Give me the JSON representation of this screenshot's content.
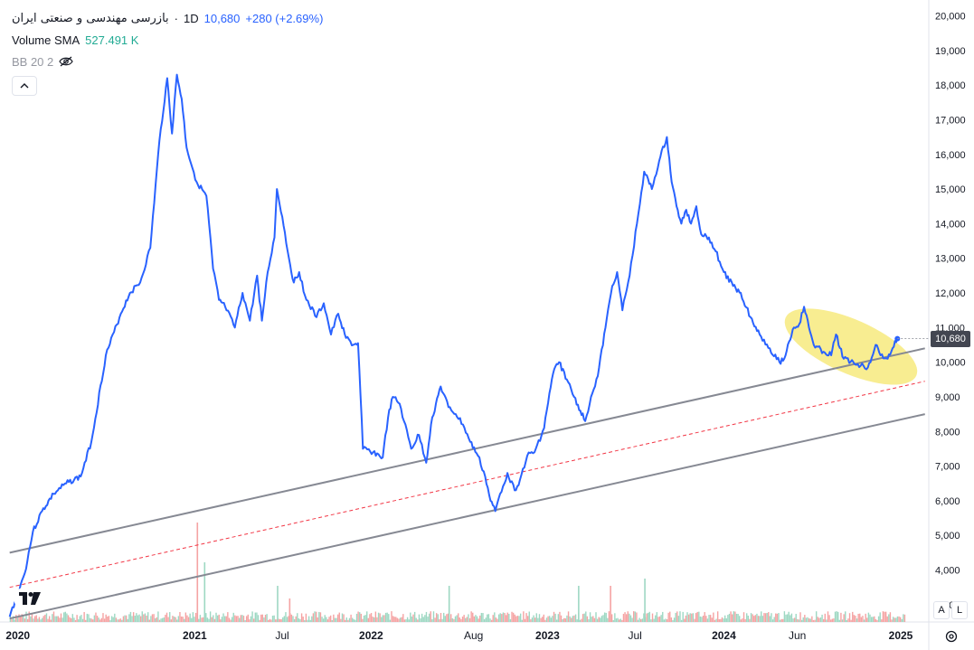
{
  "header": {
    "symbol": "بازرسی مهندسی و صنعتی ایران",
    "separator": "·",
    "interval": "1D",
    "last_price": "10,680",
    "change": "+280 (+2.69%)",
    "volume_label": "Volume SMA",
    "volume_value": "527.491 K",
    "bb_label": "BB 20 2",
    "collapse_icon": "chevron-up-icon",
    "visibility_icon": "eye-off-icon"
  },
  "price_badge": "10,680",
  "scale_buttons": {
    "auto": "A",
    "log": "L"
  },
  "colors": {
    "price_line": "#2962ff",
    "channel": "#868993",
    "midline": "#f23645",
    "highlight": "#f5e663",
    "vol_up": "#9ed8c3",
    "vol_down": "#f5a3a3"
  },
  "chart_data": {
    "type": "line",
    "title": "",
    "xlabel": "",
    "ylabel": "",
    "ylim": [
      2500,
      20300
    ],
    "xlim": [
      "2019-11-25",
      "2025-02-28"
    ],
    "y_ticks": [
      "3,000",
      "4,000",
      "5,000",
      "6,000",
      "7,000",
      "8,000",
      "9,000",
      "10,000",
      "11,000",
      "12,000",
      "13,000",
      "14,000",
      "15,000",
      "16,000",
      "17,000",
      "18,000",
      "19,000",
      "20,000"
    ],
    "x_ticks": [
      {
        "label": "2020",
        "date": "2020-01-01"
      },
      {
        "label": "2021",
        "date": "2021-01-01"
      },
      {
        "label": "Jul",
        "date": "2021-07-01"
      },
      {
        "label": "2022",
        "date": "2022-01-01"
      },
      {
        "label": "Aug",
        "date": "2022-08-01"
      },
      {
        "label": "2023",
        "date": "2023-01-01"
      },
      {
        "label": "Jul",
        "date": "2023-07-01"
      },
      {
        "label": "2024",
        "date": "2024-01-01"
      },
      {
        "label": "Jun",
        "date": "2024-06-01"
      },
      {
        "label": "2025",
        "date": "2025-01-01"
      }
    ],
    "series": [
      {
        "points": [
          [
            "2019-12-15",
            2650
          ],
          [
            "2020-01-15",
            3900
          ],
          [
            "2020-02-01",
            5100
          ],
          [
            "2020-02-20",
            5700
          ],
          [
            "2020-03-15",
            6200
          ],
          [
            "2020-04-10",
            6500
          ],
          [
            "2020-05-10",
            6700
          ],
          [
            "2020-06-01",
            7700
          ],
          [
            "2020-07-01",
            10200
          ],
          [
            "2020-08-01",
            11400
          ],
          [
            "2020-08-20",
            12000
          ],
          [
            "2020-09-10",
            12300
          ],
          [
            "2020-10-01",
            13300
          ],
          [
            "2020-10-20",
            16400
          ],
          [
            "2020-11-05",
            18200
          ],
          [
            "2020-11-15",
            16600
          ],
          [
            "2020-11-25",
            18300
          ],
          [
            "2020-12-05",
            17600
          ],
          [
            "2020-12-15",
            16200
          ],
          [
            "2021-01-05",
            15200
          ],
          [
            "2021-01-25",
            14800
          ],
          [
            "2021-02-08",
            12700
          ],
          [
            "2021-02-20",
            11800
          ],
          [
            "2021-03-05",
            11600
          ],
          [
            "2021-03-25",
            11000
          ],
          [
            "2021-04-10",
            12000
          ],
          [
            "2021-04-25",
            11200
          ],
          [
            "2021-05-10",
            12500
          ],
          [
            "2021-05-20",
            11200
          ],
          [
            "2021-06-01",
            12600
          ],
          [
            "2021-06-15",
            13600
          ],
          [
            "2021-06-20",
            15000
          ],
          [
            "2021-07-01",
            14200
          ],
          [
            "2021-07-15",
            13000
          ],
          [
            "2021-07-25",
            12300
          ],
          [
            "2021-08-05",
            12600
          ],
          [
            "2021-08-20",
            11800
          ],
          [
            "2021-09-10",
            11300
          ],
          [
            "2021-09-25",
            11700
          ],
          [
            "2021-10-10",
            10800
          ],
          [
            "2021-10-25",
            11400
          ],
          [
            "2021-11-10",
            10700
          ],
          [
            "2021-11-25",
            10500
          ],
          [
            "2021-12-05",
            10550
          ],
          [
            "2021-12-15",
            7500
          ],
          [
            "2022-01-05",
            7400
          ],
          [
            "2022-01-25",
            7250
          ],
          [
            "2022-02-05",
            8400
          ],
          [
            "2022-02-15",
            9000
          ],
          [
            "2022-03-01",
            8800
          ],
          [
            "2022-03-10",
            8300
          ],
          [
            "2022-03-25",
            7500
          ],
          [
            "2022-04-10",
            7900
          ],
          [
            "2022-04-25",
            7100
          ],
          [
            "2022-05-05",
            8200
          ],
          [
            "2022-05-15",
            8800
          ],
          [
            "2022-05-25",
            9300
          ],
          [
            "2022-06-10",
            8700
          ],
          [
            "2022-06-25",
            8500
          ],
          [
            "2022-07-10",
            8200
          ],
          [
            "2022-07-25",
            7700
          ],
          [
            "2022-08-10",
            7300
          ],
          [
            "2022-08-25",
            6700
          ],
          [
            "2022-09-05",
            6000
          ],
          [
            "2022-09-15",
            5700
          ],
          [
            "2022-09-25",
            6200
          ],
          [
            "2022-10-10",
            6800
          ],
          [
            "2022-10-25",
            6300
          ],
          [
            "2022-11-05",
            6600
          ],
          [
            "2022-11-20",
            7300
          ],
          [
            "2022-12-05",
            7400
          ],
          [
            "2022-12-25",
            8100
          ],
          [
            "2023-01-05",
            9100
          ],
          [
            "2023-01-15",
            9800
          ],
          [
            "2023-01-25",
            10000
          ],
          [
            "2023-02-10",
            9500
          ],
          [
            "2023-02-25",
            9000
          ],
          [
            "2023-03-10",
            8600
          ],
          [
            "2023-03-20",
            8300
          ],
          [
            "2023-04-01",
            9000
          ],
          [
            "2023-04-15",
            9600
          ],
          [
            "2023-05-01",
            11000
          ],
          [
            "2023-05-15",
            12200
          ],
          [
            "2023-05-25",
            12600
          ],
          [
            "2023-06-05",
            11500
          ],
          [
            "2023-06-20",
            12500
          ],
          [
            "2023-07-05",
            14000
          ],
          [
            "2023-07-20",
            15500
          ],
          [
            "2023-08-05",
            15000
          ],
          [
            "2023-08-20",
            15800
          ],
          [
            "2023-09-05",
            16500
          ],
          [
            "2023-09-15",
            15200
          ],
          [
            "2023-09-25",
            14500
          ],
          [
            "2023-10-05",
            14000
          ],
          [
            "2023-10-15",
            14400
          ],
          [
            "2023-10-25",
            14000
          ],
          [
            "2023-11-05",
            14500
          ],
          [
            "2023-11-15",
            13700
          ],
          [
            "2023-12-01",
            13600
          ],
          [
            "2023-12-15",
            13200
          ],
          [
            "2024-01-01",
            12600
          ],
          [
            "2024-01-20",
            12200
          ],
          [
            "2024-02-05",
            12000
          ],
          [
            "2024-02-25",
            11300
          ],
          [
            "2024-03-15",
            10800
          ],
          [
            "2024-04-05",
            10400
          ],
          [
            "2024-04-25",
            10000
          ],
          [
            "2024-05-05",
            10100
          ],
          [
            "2024-05-15",
            10600
          ],
          [
            "2024-05-25",
            11000
          ],
          [
            "2024-06-05",
            11100
          ],
          [
            "2024-06-15",
            11600
          ],
          [
            "2024-06-25",
            11000
          ],
          [
            "2024-07-05",
            10500
          ],
          [
            "2024-07-25",
            10300
          ],
          [
            "2024-08-10",
            10200
          ],
          [
            "2024-08-20",
            10800
          ],
          [
            "2024-09-05",
            10100
          ],
          [
            "2024-09-25",
            10000
          ],
          [
            "2024-10-10",
            9900
          ],
          [
            "2024-10-25",
            9850
          ],
          [
            "2024-11-10",
            10500
          ],
          [
            "2024-11-20",
            10200
          ],
          [
            "2024-12-05",
            10100
          ],
          [
            "2024-12-15",
            10400
          ],
          [
            "2024-12-25",
            10680
          ]
        ]
      }
    ],
    "channel": {
      "upper": [
        [
          "2019-12-15",
          4500
        ],
        [
          "2025-02-20",
          10400
        ]
      ],
      "mid": [
        [
          "2019-12-15",
          3500
        ],
        [
          "2025-02-20",
          9450
        ]
      ],
      "lower": [
        [
          "2019-12-15",
          2600
        ],
        [
          "2025-02-20",
          8500
        ]
      ]
    },
    "highlight_region": {
      "start": "2024-04-25",
      "end": "2025-02-15",
      "low": 9200,
      "high": 11700
    },
    "last_point": [
      "2024-12-25",
      10680
    ],
    "volume": {
      "note": "volume bars at bottom, no values printed",
      "spikes": [
        {
          "date": "2021-01-05",
          "relative": 0.55,
          "direction": "down"
        },
        {
          "date": "2021-01-20",
          "relative": 0.33,
          "direction": "up"
        },
        {
          "date": "2021-06-20",
          "relative": 0.2,
          "direction": "up"
        },
        {
          "date": "2021-07-15",
          "relative": 0.13,
          "direction": "down"
        },
        {
          "date": "2022-06-10",
          "relative": 0.2,
          "direction": "up"
        },
        {
          "date": "2023-03-05",
          "relative": 0.2,
          "direction": "up"
        },
        {
          "date": "2023-05-10",
          "relative": 0.2,
          "direction": "down"
        },
        {
          "date": "2023-07-20",
          "relative": 0.24,
          "direction": "up"
        }
      ]
    }
  }
}
